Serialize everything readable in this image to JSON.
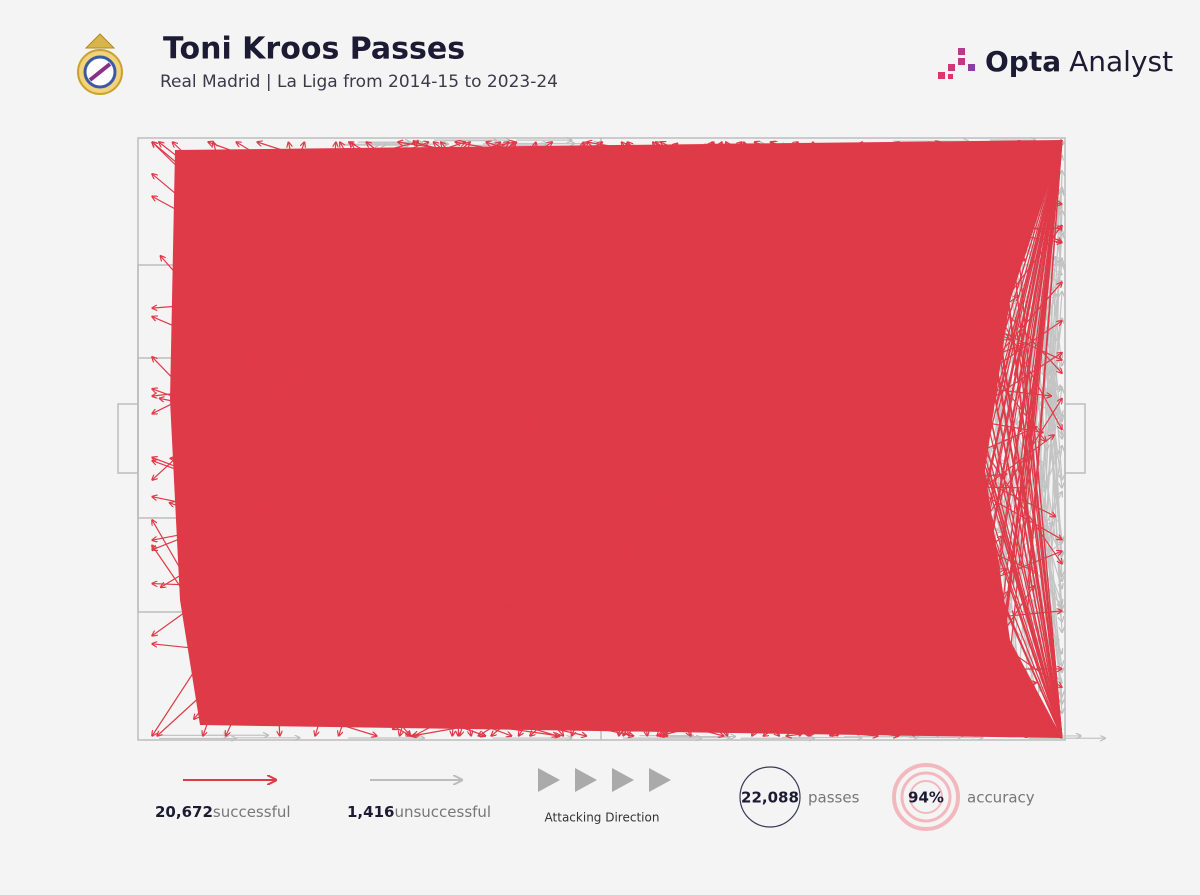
{
  "header": {
    "title": "Toni Kroos Passes",
    "subtitle": "Real Madrid | La Liga from 2014-15 to 2023-24",
    "brand_bold": "Opta",
    "brand_light": "Analyst"
  },
  "legend": {
    "successful": {
      "count": "20,672",
      "label": "successful"
    },
    "unsuccessful": {
      "count": "1,416",
      "label": "unsuccessful"
    },
    "direction": "Attacking Direction",
    "passes": {
      "count": "22,088",
      "label": "passes"
    },
    "accuracy": {
      "value": "94%",
      "label": "accuracy"
    }
  }
}
